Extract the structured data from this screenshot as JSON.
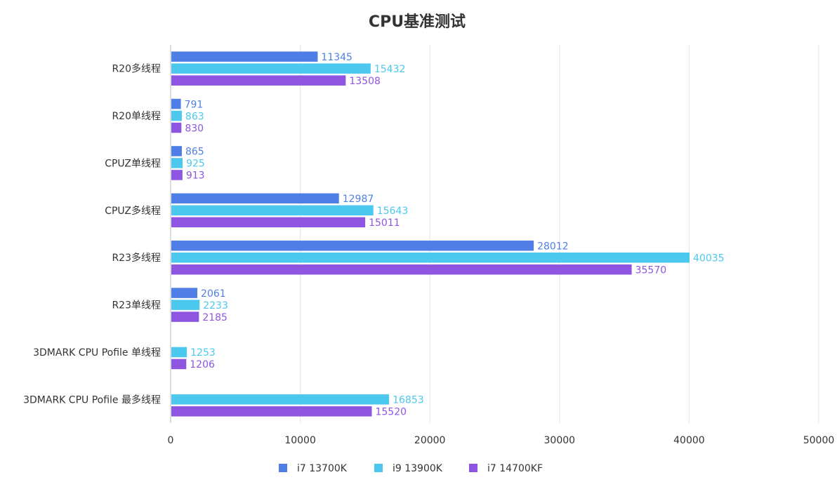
{
  "chart_data": {
    "type": "bar",
    "orientation": "horizontal",
    "title": "CPU基准测试",
    "categories": [
      "R20多线程",
      "R20单线程",
      "CPUZ单线程",
      "CPUZ多线程",
      "R23多线程",
      "R23单线程",
      "3DMARK CPU Pofile 单线程",
      "3DMARK CPU Pofile 最多线程"
    ],
    "series": [
      {
        "name": "i7 13700K",
        "color": "#4f7fe6",
        "values": [
          11345,
          791,
          865,
          12987,
          28012,
          2061,
          null,
          null
        ]
      },
      {
        "name": "i9 13900K",
        "color": "#4cc8ee",
        "values": [
          15432,
          863,
          925,
          15643,
          40035,
          2233,
          1253,
          16853
        ]
      },
      {
        "name": "i7 14700KF",
        "color": "#8e56e0",
        "values": [
          13508,
          830,
          913,
          15011,
          35570,
          2185,
          1206,
          15520
        ]
      }
    ],
    "xlim": [
      0,
      50000
    ],
    "xticks": [
      0,
      10000,
      20000,
      30000,
      40000,
      50000
    ],
    "xtick_labels": [
      "0",
      "10000",
      "20000",
      "30000",
      "40000",
      "50000"
    ],
    "grid": "vertical",
    "legend": "bottom-center"
  }
}
